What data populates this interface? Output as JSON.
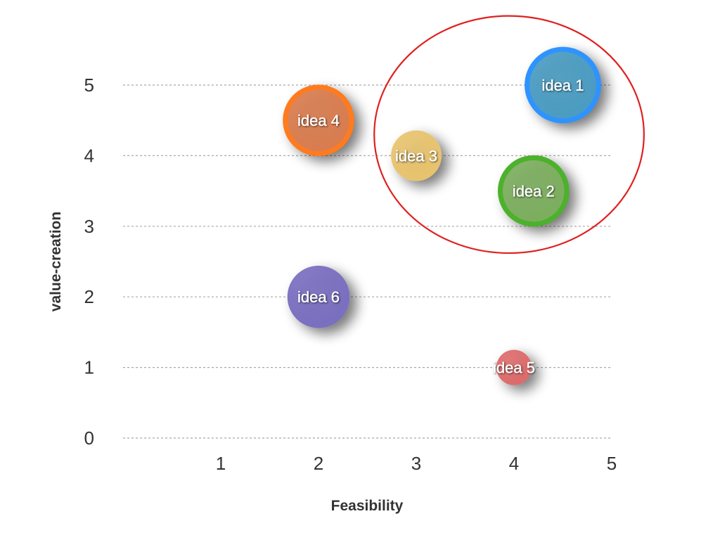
{
  "chart_data": {
    "type": "scatter",
    "xlabel": "Feasibility",
    "ylabel": "value-creation",
    "xlim": [
      0,
      5
    ],
    "ylim": [
      0,
      5
    ],
    "x_ticks": [
      1,
      2,
      3,
      4,
      5
    ],
    "y_ticks": [
      0,
      1,
      2,
      3,
      4,
      5
    ],
    "grid": "horizontal-dashed",
    "points": [
      {
        "label": "idea 1",
        "x": 4.5,
        "y": 5.0,
        "size": 0.45,
        "fill": "#4a9cc2",
        "ring": "#2e93ff"
      },
      {
        "label": "idea 2",
        "x": 4.2,
        "y": 3.5,
        "size": 0.42,
        "fill": "#7cae5e",
        "ring": "#4cb12b"
      },
      {
        "label": "idea 3",
        "x": 3.0,
        "y": 4.0,
        "size": 0.3,
        "fill": "#e8c36d",
        "ring": ""
      },
      {
        "label": "idea 4",
        "x": 2.0,
        "y": 4.5,
        "size": 0.42,
        "fill": "#d97c4e",
        "ring": "#ff7b1f"
      },
      {
        "label": "idea 5",
        "x": 4.0,
        "y": 1.0,
        "size": 0.21,
        "fill": "#dd6a6a",
        "ring": ""
      },
      {
        "label": "idea 6",
        "x": 2.0,
        "y": 2.0,
        "size": 0.37,
        "fill": "#7a6ec0",
        "ring": ""
      }
    ],
    "highlight_ellipse": {
      "color": "#e02020",
      "center_x": 3.95,
      "center_y": 4.3,
      "radius_x": 1.38,
      "radius_y": 1.68
    }
  }
}
